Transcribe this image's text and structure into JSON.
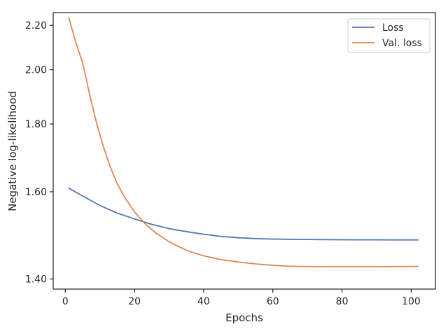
{
  "chart_data": {
    "type": "line",
    "xlabel": "Epochs",
    "ylabel": "Negative log-likelihood",
    "xlim": [
      -3.5,
      107
    ],
    "ylim": [
      1.38,
      2.265
    ],
    "y_scale": "reciprocal",
    "xticks": [
      0,
      20,
      40,
      60,
      80,
      100
    ],
    "xtick_labels": [
      "0",
      "20",
      "40",
      "60",
      "80",
      "100"
    ],
    "yticks": [
      1.4,
      1.6,
      1.8,
      2.0,
      2.2
    ],
    "ytick_labels": [
      "1.40",
      "1.60",
      "1.80",
      "2.00",
      "2.20"
    ],
    "grid": false,
    "legend_position": "top-right",
    "series": [
      {
        "name": "Loss",
        "color": "#4c72b0",
        "x": [
          1,
          5,
          10,
          15,
          20,
          25,
          30,
          35,
          40,
          45,
          50,
          55,
          60,
          65,
          70,
          75,
          80,
          85,
          90,
          95,
          100,
          102
        ],
        "y": [
          1.61,
          1.589,
          1.565,
          1.546,
          1.532,
          1.519,
          1.509,
          1.502,
          1.496,
          1.491,
          1.488,
          1.486,
          1.485,
          1.4845,
          1.484,
          1.4837,
          1.4835,
          1.4833,
          1.4832,
          1.4831,
          1.483,
          1.483
        ]
      },
      {
        "name": "Val. loss",
        "color": "#dd8452",
        "x": [
          1,
          3,
          5,
          7,
          9,
          11,
          13,
          15,
          17,
          20,
          23,
          26,
          30,
          35,
          40,
          45,
          50,
          55,
          60,
          65,
          70,
          75,
          80,
          85,
          90,
          95,
          100,
          102
        ],
        "y": [
          2.24,
          2.12,
          2.03,
          1.905,
          1.805,
          1.728,
          1.668,
          1.622,
          1.588,
          1.549,
          1.521,
          1.5,
          1.479,
          1.46,
          1.448,
          1.44,
          1.435,
          1.431,
          1.428,
          1.426,
          1.4255,
          1.425,
          1.425,
          1.425,
          1.425,
          1.4253,
          1.4257,
          1.426
        ]
      }
    ]
  }
}
